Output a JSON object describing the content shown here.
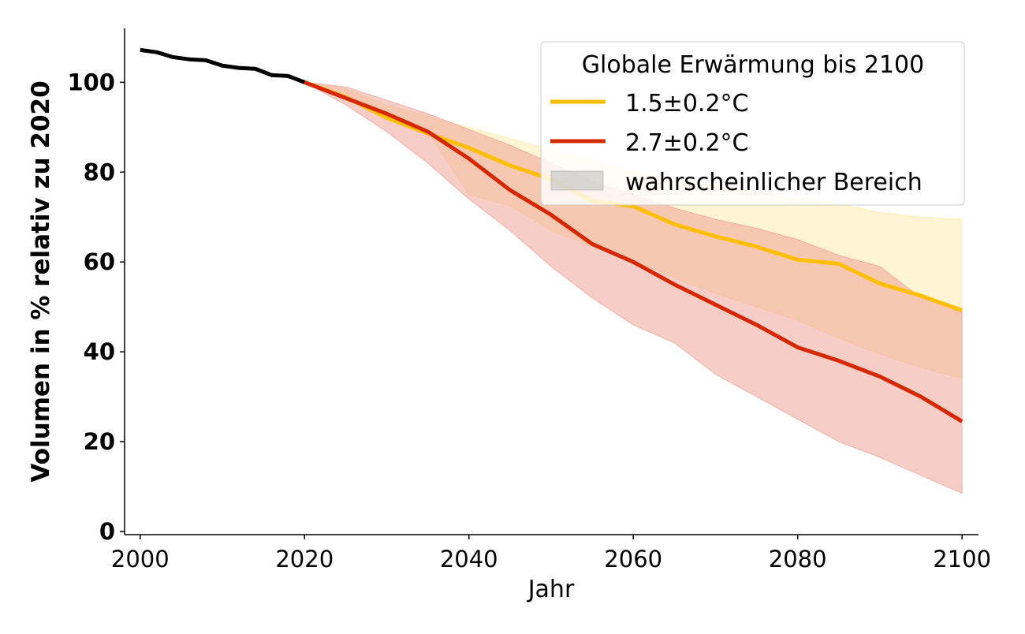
{
  "chart_data": {
    "type": "line",
    "xlabel": "Jahr",
    "ylabel": "Volumen in % relativ zu 2020",
    "xlim": [
      1998.1,
      2102
    ],
    "ylim": [
      -0.7,
      112
    ],
    "xticks": [
      2000,
      2020,
      2040,
      2060,
      2080,
      2100
    ],
    "yticks": [
      0,
      20,
      40,
      60,
      80,
      100
    ],
    "grid": false,
    "legend": {
      "title": "Globale Erwärmung bis 2100",
      "placement": "top-right",
      "entries": [
        "1.5±0.2°C",
        "2.7±0.2°C",
        "wahrscheinlicher Bereich"
      ]
    },
    "historical": {
      "color": "#000000",
      "x": [
        2000,
        2002,
        2004,
        2006,
        2008,
        2010,
        2012,
        2014,
        2016,
        2018,
        2020
      ],
      "y": [
        107.2,
        106.7,
        105.6,
        105.1,
        104.9,
        103.7,
        103.2,
        103.0,
        101.6,
        101.4,
        100.0
      ]
    },
    "series": [
      {
        "name": "1.5±0.2°C",
        "color": "#FFBF00",
        "band_color": "#FFE9A8",
        "x": [
          2020,
          2025,
          2030,
          2035,
          2040,
          2045,
          2050,
          2055,
          2060,
          2065,
          2070,
          2075,
          2080,
          2085,
          2090,
          2095,
          2100
        ],
        "median": [
          100,
          96.7,
          92.1,
          88.6,
          85.4,
          81.5,
          78.4,
          73.6,
          72.4,
          68.4,
          65.7,
          63.4,
          60.5,
          59.6,
          55.2,
          52.5,
          49.2
        ],
        "upper": [
          100,
          98.5,
          95,
          92.5,
          90,
          87.5,
          85,
          82.5,
          80,
          78.5,
          77,
          75.5,
          74,
          73,
          71,
          70,
          69.5
        ],
        "lower": [
          100,
          96,
          92.5,
          89,
          75,
          72.5,
          67,
          63.5,
          60,
          56.5,
          53,
          50,
          47,
          43,
          39.5,
          36.5,
          34
        ]
      },
      {
        "name": "2.7±0.2°C",
        "color": "#D62800",
        "band_color": "#EE9C90",
        "x": [
          2020,
          2025,
          2030,
          2035,
          2040,
          2045,
          2050,
          2055,
          2060,
          2065,
          2070,
          2075,
          2080,
          2085,
          2090,
          2095,
          2100
        ],
        "median": [
          100,
          96.5,
          93,
          89,
          83,
          76,
          70.5,
          64,
          60,
          55,
          50.5,
          46,
          41,
          38,
          34.5,
          30,
          24.5
        ],
        "upper": [
          100,
          99,
          96,
          93,
          89.5,
          86,
          82,
          78,
          75,
          72,
          69.5,
          67.5,
          65,
          61.5,
          59,
          52,
          49
        ],
        "lower": [
          100,
          95,
          89,
          82,
          74,
          67,
          59,
          52,
          46,
          42,
          35,
          30,
          25,
          20,
          16.5,
          12.5,
          8.5
        ]
      }
    ]
  }
}
